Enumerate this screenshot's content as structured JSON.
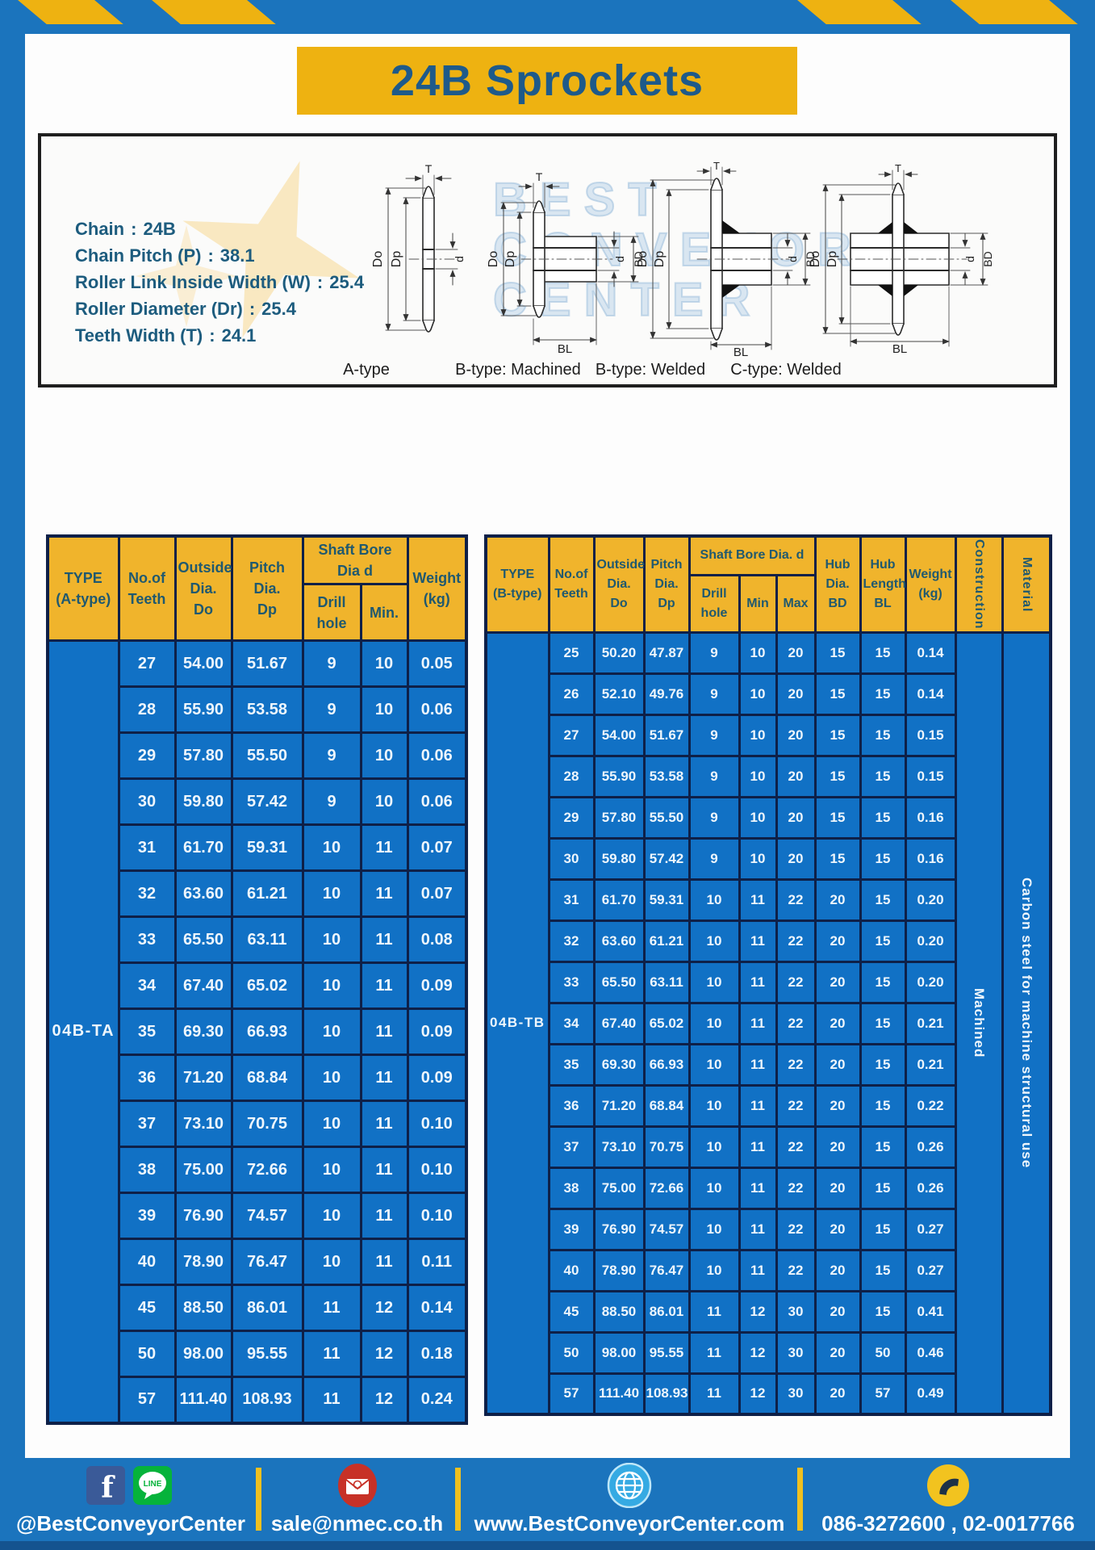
{
  "header": {
    "title": "24B Sprockets"
  },
  "specs": {
    "items": [
      {
        "label": "Chain",
        "value": "24B"
      },
      {
        "label": "Chain Pitch (P)",
        "value": "38.1"
      },
      {
        "label": "Roller Link Inside Width (W)",
        "value": "25.4"
      },
      {
        "label": "Roller Diameter (Dr)",
        "value": "25.4"
      },
      {
        "label": "Teeth Width (T)",
        "value": "24.1"
      }
    ]
  },
  "diagram": {
    "captions": [
      "A-type",
      "B-type: Machined",
      "B-type: Welded",
      "C-type: Welded"
    ],
    "dim_labels": {
      "t": "T",
      "outside": "Do",
      "pitch": "Dp",
      "bore": "d",
      "hub_dia": "BD",
      "hub_len": "BL"
    },
    "watermark": {
      "line1": "BEST",
      "line2": "CONVEYOR",
      "line3": "CENTER"
    }
  },
  "table_a": {
    "headers": {
      "type": "TYPE\n(A-type)",
      "teeth": "No.of\nTeeth",
      "outside": "Outside\nDia.\nDo",
      "pitch": "Pitch Dia.\nDp",
      "shaft_bore": "Shaft Bore Dia d",
      "drill": "Drill hole",
      "min": "Min.",
      "weight": "Weight\n(kg)"
    },
    "type_value": "04B-TA",
    "rows": [
      [
        "27",
        "54.00",
        "51.67",
        "9",
        "10",
        "0.05"
      ],
      [
        "28",
        "55.90",
        "53.58",
        "9",
        "10",
        "0.06"
      ],
      [
        "29",
        "57.80",
        "55.50",
        "9",
        "10",
        "0.06"
      ],
      [
        "30",
        "59.80",
        "57.42",
        "9",
        "10",
        "0.06"
      ],
      [
        "31",
        "61.70",
        "59.31",
        "10",
        "11",
        "0.07"
      ],
      [
        "32",
        "63.60",
        "61.21",
        "10",
        "11",
        "0.07"
      ],
      [
        "33",
        "65.50",
        "63.11",
        "10",
        "11",
        "0.08"
      ],
      [
        "34",
        "67.40",
        "65.02",
        "10",
        "11",
        "0.09"
      ],
      [
        "35",
        "69.30",
        "66.93",
        "10",
        "11",
        "0.09"
      ],
      [
        "36",
        "71.20",
        "68.84",
        "10",
        "11",
        "0.09"
      ],
      [
        "37",
        "73.10",
        "70.75",
        "10",
        "11",
        "0.10"
      ],
      [
        "38",
        "75.00",
        "72.66",
        "10",
        "11",
        "0.10"
      ],
      [
        "39",
        "76.90",
        "74.57",
        "10",
        "11",
        "0.10"
      ],
      [
        "40",
        "78.90",
        "76.47",
        "10",
        "11",
        "0.11"
      ],
      [
        "45",
        "88.50",
        "86.01",
        "11",
        "12",
        "0.14"
      ],
      [
        "50",
        "98.00",
        "95.55",
        "11",
        "12",
        "0.18"
      ],
      [
        "57",
        "111.40",
        "108.93",
        "11",
        "12",
        "0.24"
      ]
    ]
  },
  "table_b": {
    "headers": {
      "type": "TYPE\n(B-type)",
      "teeth": "No.of\nTeeth",
      "outside": "Outside\nDia.\nDo",
      "pitch": "Pitch\nDia.\nDp",
      "shaft_bore": "Shaft Bore Dia. d",
      "drill": "Drill hole",
      "min": "Min",
      "max": "Max",
      "hub_dia": "Hub\nDia.\nBD",
      "hub_len": "Hub\nLength\nBL",
      "weight": "Weight\n(kg)",
      "construction": "Construction",
      "material": "Material"
    },
    "type_value": "04B-TB",
    "construction_value": "Machined",
    "material_value": "Carbon steel for machine structural use",
    "rows": [
      [
        "25",
        "50.20",
        "47.87",
        "9",
        "10",
        "20",
        "15",
        "15",
        "0.14"
      ],
      [
        "26",
        "52.10",
        "49.76",
        "9",
        "10",
        "20",
        "15",
        "15",
        "0.14"
      ],
      [
        "27",
        "54.00",
        "51.67",
        "9",
        "10",
        "20",
        "15",
        "15",
        "0.15"
      ],
      [
        "28",
        "55.90",
        "53.58",
        "9",
        "10",
        "20",
        "15",
        "15",
        "0.15"
      ],
      [
        "29",
        "57.80",
        "55.50",
        "9",
        "10",
        "20",
        "15",
        "15",
        "0.16"
      ],
      [
        "30",
        "59.80",
        "57.42",
        "9",
        "10",
        "20",
        "15",
        "15",
        "0.16"
      ],
      [
        "31",
        "61.70",
        "59.31",
        "10",
        "11",
        "22",
        "20",
        "15",
        "0.20"
      ],
      [
        "32",
        "63.60",
        "61.21",
        "10",
        "11",
        "22",
        "20",
        "15",
        "0.20"
      ],
      [
        "33",
        "65.50",
        "63.11",
        "10",
        "11",
        "22",
        "20",
        "15",
        "0.20"
      ],
      [
        "34",
        "67.40",
        "65.02",
        "10",
        "11",
        "22",
        "20",
        "15",
        "0.21"
      ],
      [
        "35",
        "69.30",
        "66.93",
        "10",
        "11",
        "22",
        "20",
        "15",
        "0.21"
      ],
      [
        "36",
        "71.20",
        "68.84",
        "10",
        "11",
        "22",
        "20",
        "15",
        "0.22"
      ],
      [
        "37",
        "73.10",
        "70.75",
        "10",
        "11",
        "22",
        "20",
        "15",
        "0.26"
      ],
      [
        "38",
        "75.00",
        "72.66",
        "10",
        "11",
        "22",
        "20",
        "15",
        "0.26"
      ],
      [
        "39",
        "76.90",
        "74.57",
        "10",
        "11",
        "22",
        "20",
        "15",
        "0.27"
      ],
      [
        "40",
        "78.90",
        "76.47",
        "10",
        "11",
        "22",
        "20",
        "15",
        "0.27"
      ],
      [
        "45",
        "88.50",
        "86.01",
        "11",
        "12",
        "30",
        "20",
        "15",
        "0.41"
      ],
      [
        "50",
        "98.00",
        "95.55",
        "11",
        "12",
        "30",
        "20",
        "50",
        "0.46"
      ],
      [
        "57",
        "111.40",
        "108.93",
        "11",
        "12",
        "30",
        "20",
        "57",
        "0.49"
      ]
    ]
  },
  "footer": {
    "line_badge": "LINE",
    "segments": [
      {
        "label": "@BestConveyorCenter"
      },
      {
        "label": "sale@nmec.co.th"
      },
      {
        "label": "www.BestConveyorCenter.com"
      },
      {
        "label": "086-3272600 , 02-0017766"
      }
    ]
  },
  "colors": {
    "frame_blue": "#1b74bd",
    "accent_yellow": "#eeb211",
    "table_header_yellow": "#f0b42c",
    "table_cell_blue": "#1171c5",
    "table_border_navy": "#0e2048",
    "title_navy": "#1e5a8a"
  }
}
